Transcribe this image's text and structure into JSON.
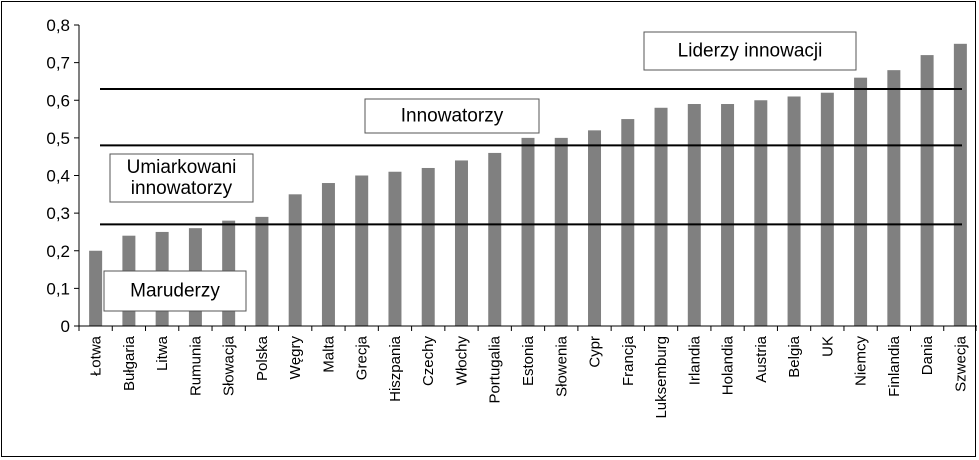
{
  "chart_data": {
    "type": "bar",
    "title": "",
    "xlabel": "",
    "ylabel": "",
    "ylim": [
      0,
      0.8
    ],
    "ytick_step": 0.1,
    "grid": false,
    "bar_color": "#808080",
    "categories": [
      "Łotwa",
      "Bułgaria",
      "Litwa",
      "Rumunia",
      "Słowacja",
      "Polska",
      "Węgry",
      "Malta",
      "Grecja",
      "Hiszpania",
      "Czechy",
      "Włochy",
      "Portugalia",
      "Estonia",
      "Słowenia",
      "Cypr",
      "Francja",
      "Luksemburg",
      "Irlandia",
      "Holandia",
      "Austria",
      "Belgia",
      "UK",
      "Niemcy",
      "Finlandia",
      "Dania",
      "Szwecja"
    ],
    "values": [
      0.2,
      0.24,
      0.25,
      0.26,
      0.28,
      0.29,
      0.35,
      0.38,
      0.4,
      0.41,
      0.42,
      0.44,
      0.46,
      0.5,
      0.5,
      0.52,
      0.55,
      0.58,
      0.59,
      0.59,
      0.6,
      0.61,
      0.62,
      0.66,
      0.68,
      0.72,
      0.75
    ],
    "ytick_labels": [
      "0",
      "0,1",
      "0,2",
      "0,3",
      "0,4",
      "0,5",
      "0,6",
      "0,7",
      "0,8"
    ],
    "thresholds": [
      0.27,
      0.48,
      0.63
    ],
    "bands": [
      {
        "lines": [
          "Maruderzy"
        ]
      },
      {
        "lines": [
          "Umiarkowani",
          "innowatorzy"
        ]
      },
      {
        "lines": [
          "Innowatorzy"
        ]
      },
      {
        "lines": [
          "Liderzy innowacji"
        ]
      }
    ]
  }
}
